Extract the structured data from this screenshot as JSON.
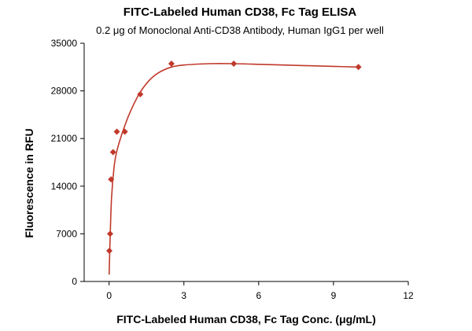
{
  "chart_data": {
    "type": "scatter",
    "title": "FITC-Labeled Human CD38, Fc Tag ELISA",
    "subtitle": "0.2 μg of Monoclonal Anti-CD38 Antibody, Human IgG1 per well",
    "xlabel": "FITC-Labeled Human CD38, Fc Tag Conc. (μg/mL)",
    "ylabel": "Fluorescence in RFU",
    "xlim": [
      -1,
      12
    ],
    "ylim": [
      0,
      35000
    ],
    "x_ticks": [
      0,
      3,
      6,
      9,
      12
    ],
    "y_ticks": [
      0,
      7000,
      14000,
      21000,
      28000,
      35000
    ],
    "grid": false,
    "marker_color": "#c0392b",
    "line_color": "#c0392b",
    "series": [
      {
        "x": [
          0.01,
          0.04,
          0.08,
          0.16,
          0.31,
          0.63,
          1.25,
          2.5,
          5.0,
          10.0
        ],
        "y": [
          4500,
          7000,
          15000,
          19000,
          22000,
          22000,
          27500,
          32000,
          32000,
          31500
        ]
      }
    ],
    "fit_curve": {
      "x": [
        0.0,
        0.05,
        0.1,
        0.2,
        0.3,
        0.5,
        0.8,
        1.2,
        1.6,
        2.0,
        2.5,
        3.0,
        4.0,
        5.0,
        6.0,
        7.0,
        8.0,
        9.0,
        10.0
      ],
      "y": [
        1000,
        7500,
        12500,
        16800,
        19000,
        21500,
        24500,
        27500,
        29500,
        30700,
        31500,
        31800,
        32000,
        32000,
        31900,
        31800,
        31700,
        31600,
        31500
      ]
    }
  }
}
